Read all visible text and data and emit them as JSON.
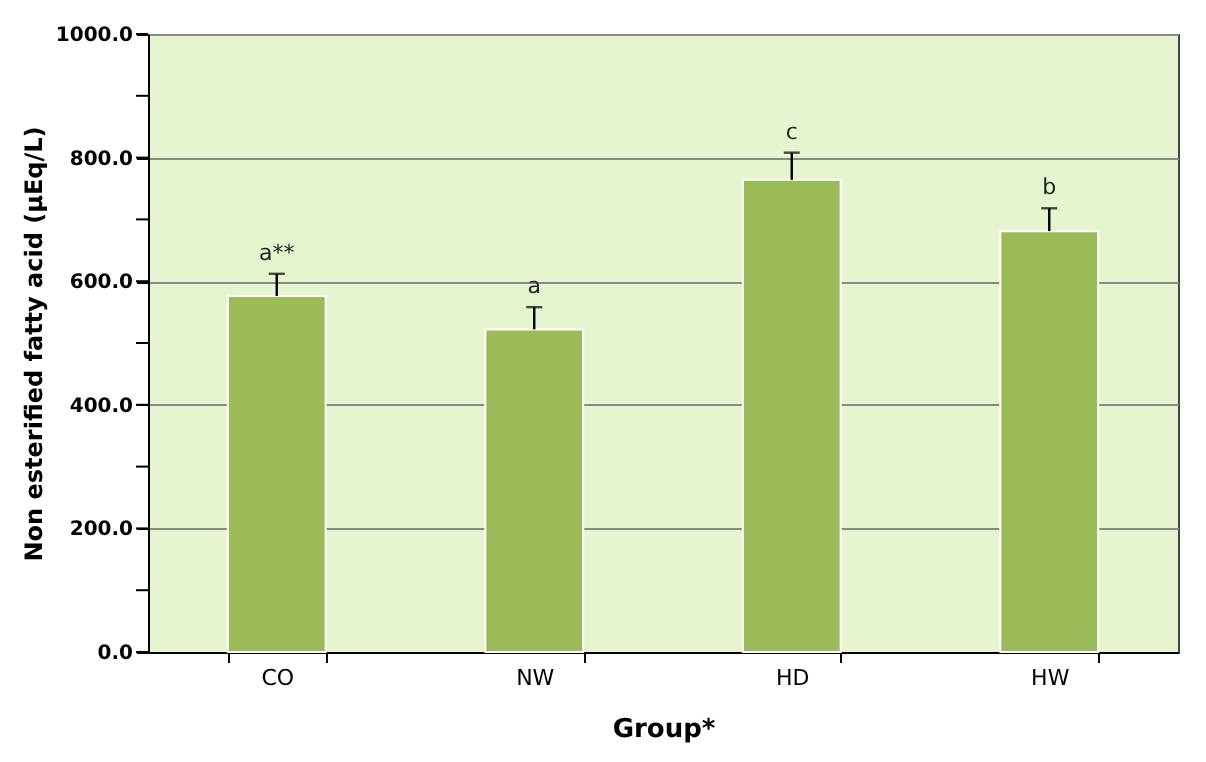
{
  "chart_data": {
    "type": "bar",
    "categories": [
      "CO",
      "NW",
      "HD",
      "HW"
    ],
    "values": [
      576,
      522,
      764,
      681
    ],
    "errors": [
      36,
      36,
      44,
      37
    ],
    "color": "#9bbb59",
    "ylabel": "Non esterified fatty acid (µEq/L)",
    "xlabel": "Group*",
    "ylim": [
      0,
      1000
    ],
    "yticks": [
      {
        "value": 0,
        "label": "0.0"
      },
      {
        "value": 100,
        "label": null
      },
      {
        "value": 200,
        "label": "200.0"
      },
      {
        "value": 300,
        "label": null
      },
      {
        "value": 400,
        "label": "400.0"
      },
      {
        "value": 500,
        "label": null
      },
      {
        "value": 600,
        "label": "600.0"
      },
      {
        "value": 700,
        "label": null
      },
      {
        "value": 800,
        "label": "800.0"
      },
      {
        "value": 900,
        "label": null
      },
      {
        "value": 1000,
        "label": "1000.0"
      }
    ],
    "grid": "y",
    "annotations": [
      {
        "text": "a**",
        "x": "CO",
        "y": 612
      },
      {
        "text": "a",
        "x": "NW",
        "y": 558
      },
      {
        "text": "c",
        "x": "HD",
        "y": 808
      },
      {
        "text": "b",
        "x": "HW",
        "y": 718
      }
    ]
  }
}
